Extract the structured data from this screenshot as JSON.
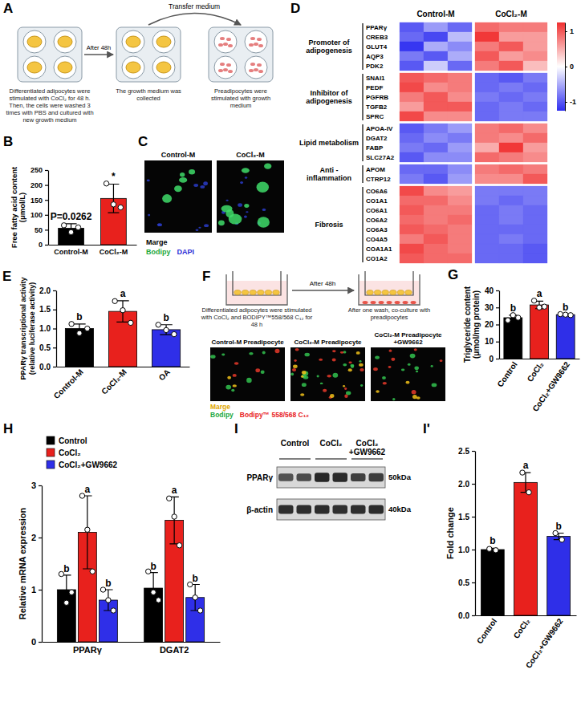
{
  "chart_data": [
    {
      "panel": "B",
      "type": "bar",
      "categories": [
        "Control-M",
        "CoCl₂-M"
      ],
      "values": [
        55,
        155
      ],
      "errors": [
        15,
        48
      ],
      "points": [
        [
          65,
          42,
          58
        ],
        [
          205,
          135,
          125
        ]
      ],
      "colors": [
        "#000000",
        "#e8211d"
      ],
      "ylabel": "Free fatty acid content (μmol/L)",
      "ylim": [
        0,
        250
      ],
      "yticks": [
        0,
        50,
        100,
        150,
        200,
        250
      ],
      "annotations": [
        "P=0.0262",
        "*"
      ]
    },
    {
      "panel": "D",
      "type": "heatmap",
      "columns": [
        "Control-M",
        "CoCl₂-M"
      ],
      "groups": [
        {
          "label": "Promoter of adipogenesis",
          "rows": [
            "PPARγ",
            "CREB3",
            "GLUT4",
            "AQP3",
            "PDK2"
          ],
          "values": [
            [
              -1.0,
              -0.6,
              -0.9,
              0.9,
              0.8,
              0.8
            ],
            [
              -0.9,
              -1.1,
              -0.4,
              1.2,
              0.6,
              0.6
            ],
            [
              -1.2,
              -0.5,
              -0.7,
              0.8,
              1.0,
              0.6
            ],
            [
              -0.8,
              -1.0,
              -0.5,
              1.0,
              0.6,
              0.7
            ],
            [
              -1.0,
              -0.3,
              -0.9,
              0.8,
              1.0,
              0.4
            ]
          ]
        },
        {
          "label": "Inhibitor of adipogenesis",
          "rows": [
            "SNAI1",
            "PEDF",
            "PGFRB",
            "TGFB2",
            "SPRC"
          ],
          "values": [
            [
              1.0,
              0.9,
              0.8,
              -0.9,
              -1.0,
              -0.8
            ],
            [
              1.1,
              0.7,
              0.8,
              -0.9,
              -0.8,
              -0.9
            ],
            [
              0.8,
              1.0,
              0.7,
              -0.8,
              -0.9,
              -0.8
            ],
            [
              0.6,
              1.0,
              1.0,
              -0.9,
              -0.8,
              -0.9
            ],
            [
              1.1,
              0.7,
              0.7,
              -0.9,
              -0.8,
              -0.8
            ]
          ]
        },
        {
          "label": "Lipid metabolism",
          "rows": [
            "APOA-IV",
            "DGAT2",
            "FABP",
            "SLC27A2"
          ],
          "values": [
            [
              -1.0,
              -0.8,
              -0.6,
              0.8,
              0.9,
              0.7
            ],
            [
              -0.9,
              -0.7,
              -0.8,
              0.8,
              0.7,
              0.9
            ],
            [
              -0.8,
              -0.9,
              -0.6,
              0.5,
              1.2,
              0.6
            ],
            [
              -1.0,
              -0.7,
              -0.7,
              0.9,
              0.8,
              0.7
            ]
          ]
        },
        {
          "label": "Anti - inflammation",
          "rows": [
            "APOM",
            "CTRP12"
          ],
          "values": [
            [
              -0.9,
              -0.9,
              -0.7,
              0.8,
              0.9,
              0.8
            ],
            [
              -0.8,
              -1.0,
              -0.6,
              0.7,
              0.7,
              1.0
            ]
          ]
        },
        {
          "label": "Fibrosis",
          "rows": [
            "CO6A6",
            "CO1A1",
            "CO6A1",
            "CO6A2",
            "CO6A3",
            "CO4A5",
            "COA1A1",
            "CO1A2"
          ],
          "values": [
            [
              1.1,
              0.7,
              0.6,
              -0.8,
              -0.8,
              -0.8
            ],
            [
              0.9,
              0.9,
              0.7,
              -0.8,
              -0.9,
              -0.8
            ],
            [
              1.0,
              0.8,
              0.8,
              -0.9,
              -0.8,
              -0.9
            ],
            [
              0.9,
              0.8,
              0.9,
              -0.9,
              -0.8,
              -0.9
            ],
            [
              1.0,
              0.9,
              0.8,
              -0.9,
              -0.9,
              -0.9
            ],
            [
              0.8,
              1.0,
              0.8,
              -0.9,
              -0.8,
              -0.9
            ],
            [
              1.1,
              0.9,
              0.8,
              -0.9,
              -0.9,
              -1.0
            ],
            [
              1.0,
              0.9,
              0.9,
              -0.9,
              -0.9,
              -1.0
            ]
          ]
        }
      ],
      "colorbar": {
        "range": [
          -1.25,
          1.25
        ],
        "ticks": [
          1,
          0,
          -1
        ],
        "colors": [
          "#2f2ff0",
          "#ffffff",
          "#f03030"
        ]
      }
    },
    {
      "panel": "E",
      "type": "bar",
      "categories": [
        "Control-M",
        "CoCl₂-M",
        "OA"
      ],
      "values": [
        1.0,
        1.45,
        0.97
      ],
      "errors": [
        0.12,
        0.28,
        0.13
      ],
      "points": [
        [
          1.12,
          0.88,
          1.0
        ],
        [
          1.72,
          1.48,
          1.15
        ],
        [
          1.1,
          0.96,
          0.85
        ]
      ],
      "colors": [
        "#000000",
        "#e8211d",
        "#2f2fe8"
      ],
      "ylabel": "PPARγ transcriptional activity (relative luciferase activity)",
      "ylim": [
        0,
        2
      ],
      "yticks": [
        {
          "value": 0,
          "label": "0.0"
        },
        0.5,
        {
          "value": 1,
          "label": "1.0"
        },
        1.5,
        {
          "value": 2,
          "label": "2.0"
        }
      ],
      "annotations": [
        "b",
        "a",
        "b"
      ]
    },
    {
      "panel": "G",
      "type": "bar",
      "categories": [
        "Control",
        "CoCl₂",
        "CoCl₂+GW9662"
      ],
      "values": [
        24.0,
        31.5,
        25.8
      ],
      "errors": [
        1.5,
        2.2,
        0.3
      ],
      "points": [
        [
          22.5,
          25.5,
          24.0
        ],
        [
          34.0,
          30.0,
          30.5
        ],
        [
          26.1,
          25.8,
          25.5
        ]
      ],
      "colors": [
        "#000000",
        "#e8211d",
        "#2f2fe8"
      ],
      "ylabel": "Triglyceride content (μmol/mg protein)",
      "ylim": [
        0,
        40
      ],
      "yticks": [
        0,
        10,
        20,
        30,
        40
      ],
      "annotations": [
        "b",
        "a",
        "b"
      ]
    },
    {
      "panel": "H",
      "type": "bar",
      "categories": [
        "PPARγ",
        "DGAT2"
      ],
      "legend": "top-left",
      "series": [
        {
          "name": "Control",
          "color": "#000000",
          "values": [
            1.0,
            1.03
          ],
          "errors": [
            0.28,
            0.3
          ],
          "points": [
            [
              1.3,
              0.75,
              0.95
            ],
            [
              1.35,
              0.95,
              0.8
            ]
          ],
          "annotations": [
            "b",
            "b"
          ]
        },
        {
          "name": "CoCl₂",
          "color": "#e8211d",
          "values": [
            2.1,
            2.33
          ],
          "errors": [
            0.7,
            0.45
          ],
          "points": [
            [
              2.8,
              2.15,
              1.35
            ],
            [
              2.75,
              2.4,
              1.85
            ]
          ],
          "annotations": [
            "a",
            "a"
          ]
        },
        {
          "name": "CoCl₂+GW9662",
          "color": "#2f2fe8",
          "values": [
            0.8,
            0.85
          ],
          "errors": [
            0.2,
            0.25
          ],
          "points": [
            [
              1.0,
              0.8,
              0.6
            ],
            [
              1.1,
              0.85,
              0.6
            ]
          ],
          "annotations": [
            "b",
            "b"
          ]
        }
      ],
      "ylabel": "Relative mRNA expression",
      "ylim": [
        0,
        3
      ],
      "yticks": [
        0,
        1,
        2,
        3
      ]
    },
    {
      "panel": "I'",
      "type": "bar",
      "categories": [
        "Control",
        "CoCl₂",
        "CoCl₂+GW9662"
      ],
      "values": [
        1.0,
        2.02,
        1.2
      ],
      "errors": [
        0.02,
        0.15,
        0.05
      ],
      "points": [
        [
          1.01,
          0.99
        ],
        [
          2.17,
          1.87
        ],
        [
          1.25,
          1.15
        ]
      ],
      "colors": [
        "#000000",
        "#e8211d",
        "#2f2fe8"
      ],
      "ylabel": "Fold change",
      "ylim": [
        0,
        2.5
      ],
      "yticks": [
        {
          "value": 0,
          "label": "0.0"
        },
        0.5,
        {
          "value": 1,
          "label": "1.0"
        },
        1.5,
        {
          "value": 2,
          "label": "2.0"
        },
        2.5
      ],
      "annotations": [
        "b",
        "a",
        "b"
      ]
    }
  ],
  "panel_a": {
    "panel": "A",
    "arrow_labels": [
      "After 48h",
      "Transfer medium"
    ],
    "steps": [
      "Differentiated adipocytes were stimulated with CoCl₂ for 48 h. Then, the cells were washed 3 times with PBS and cultured with new growth medium",
      "The growth medium was collected",
      "Preadipocytes were stimulated with growth medium"
    ]
  },
  "panel_c": {
    "panel": "C",
    "images": [
      "Control-M",
      "CoCl₂-M"
    ],
    "channels": [
      {
        "name": "Marge",
        "color": "#000000"
      },
      {
        "name": "Bodipy",
        "color": "#22a83e"
      },
      {
        "name": "DAPI",
        "color": "#2b2bd6"
      }
    ]
  },
  "panel_f": {
    "panel": "F",
    "arrow_label": "After 48h",
    "steps": [
      "Differentiated adipocytes were stimulated with CoCl₂ and BODIPY™558/568 C₁₂ for 48 h",
      "After one wash, co-culture with preadipocytes"
    ],
    "images": [
      "Control-M Preadipocyte",
      "CoCl₂-M Preadipocyte",
      "CoCl₂-M Preadipocyte +GW9662"
    ],
    "channels": [
      {
        "name": "Marge",
        "color": "#e0a800"
      },
      {
        "name": "Bodipy",
        "color": "#22a83e"
      },
      {
        "name": "Bodipy™ 558/568 C₁₂",
        "color": "#e8211d"
      }
    ]
  },
  "panel_i": {
    "panel": "I",
    "lanes": [
      "Control",
      "CoCl₂",
      "CoCl₂+GW9662"
    ],
    "rows": [
      {
        "label": "PPARγ",
        "size_label": "50kDa"
      },
      {
        "label": "β-actin",
        "size_label": "40kDa"
      }
    ]
  }
}
